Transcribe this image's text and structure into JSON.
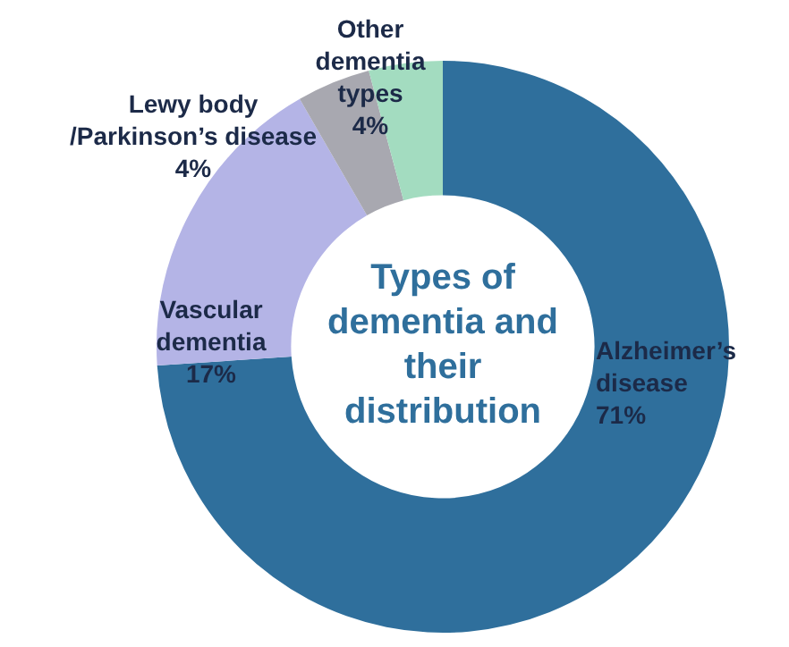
{
  "chart_data": {
    "type": "donut",
    "title": "Types of dementia and their distribution",
    "categories": [
      "Alzheimer’s disease",
      "Vascular dementia",
      "Lewy body /Parkinson’s disease",
      "Other dementia types"
    ],
    "values": [
      71,
      17,
      4,
      4
    ],
    "colors": [
      "#2f6f9c",
      "#b4b4e6",
      "#a8a8b0",
      "#a3dcc0"
    ],
    "value_labels": [
      "71%",
      "17%",
      "4%",
      "4%"
    ],
    "legend": false
  }
}
